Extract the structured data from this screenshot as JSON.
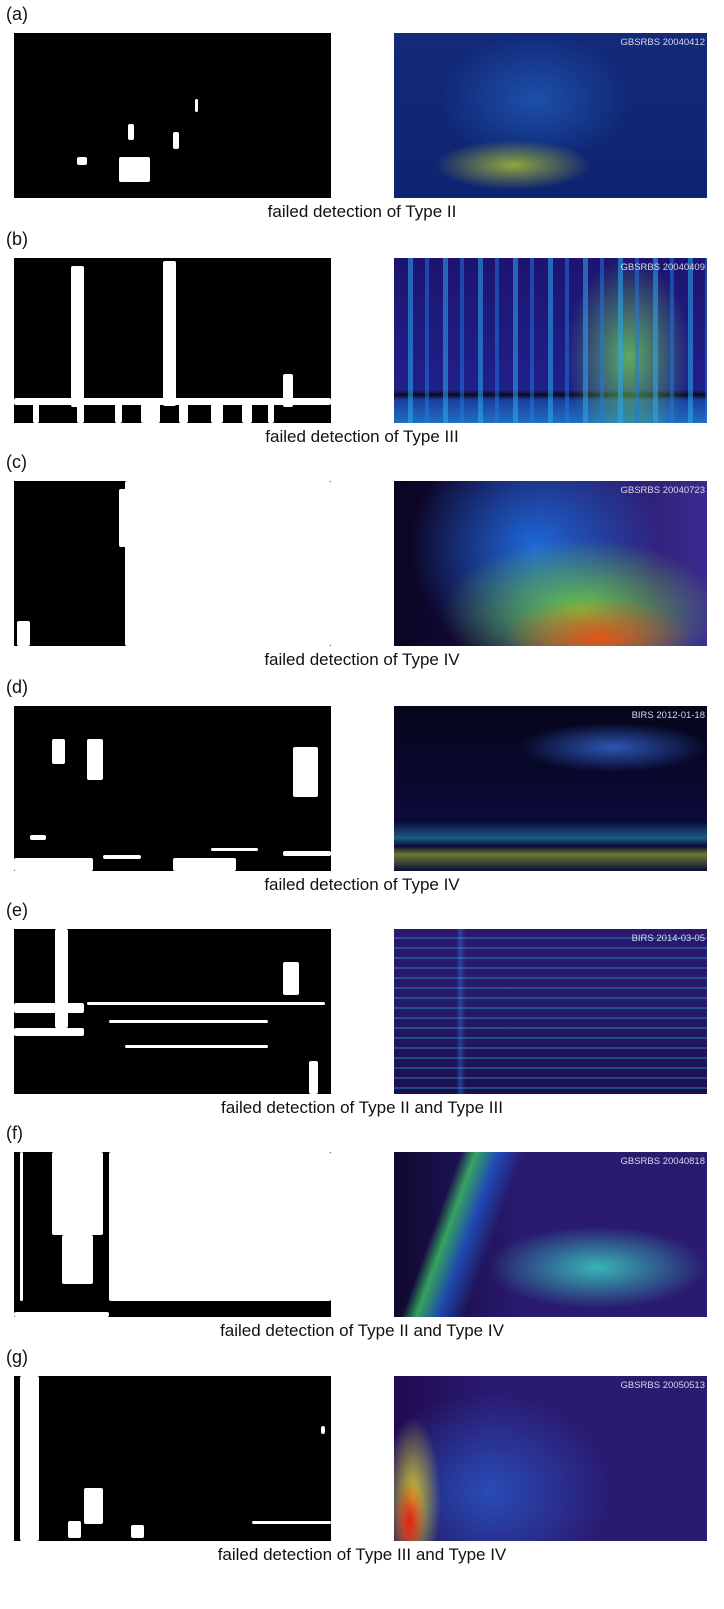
{
  "panels": [
    {
      "label": "(a)",
      "stamp": "GBSRBS 20040412",
      "caption": "failed detection of Type II"
    },
    {
      "label": "(b)",
      "stamp": "GBSRBS 20040409",
      "caption": "failed detection of Type III"
    },
    {
      "label": "(c)",
      "stamp": "GBSRBS 20040723",
      "caption": "failed detection of Type IV"
    },
    {
      "label": "(d)",
      "stamp": "BIRS 2012-01-18",
      "caption": "failed detection of Type IV"
    },
    {
      "label": "(e)",
      "stamp": "BIRS 2014-03-05",
      "caption": "failed detection of Type II and Type III"
    },
    {
      "label": "(f)",
      "stamp": "GBSRBS 20040818",
      "caption": "failed detection of Type II and Type IV"
    },
    {
      "label": "(g)",
      "stamp": "GBSRBS 20050513",
      "caption": "failed detection of Type III and Type IV"
    }
  ]
}
